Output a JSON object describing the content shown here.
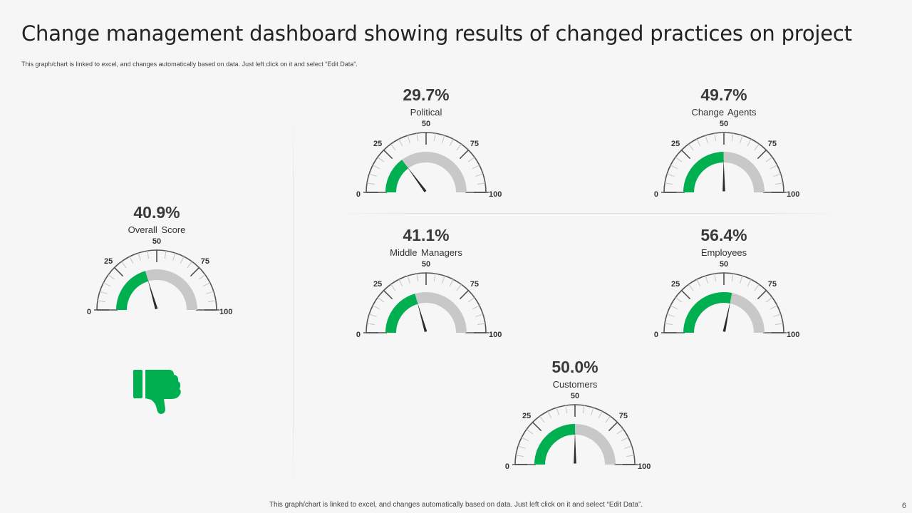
{
  "header": {
    "title": "Change management dashboard showing results of changed practices on project",
    "note_top": "This graph/chart is linked to excel, and changes automatically based on data. Just left click on it and select “Edit Data”.",
    "note_bottom": "This graph/chart is linked to excel, and changes automatically based on data. Just left click on it and select “Edit Data”.",
    "page_number": "6"
  },
  "colors": {
    "accent": "#00b050",
    "track": "#c8c8c8",
    "outline": "#555555",
    "needle": "#2b2b2b"
  },
  "icons": {
    "verdict": "thumbs-down-icon"
  },
  "chart_data": {
    "type": "gauge",
    "range": [
      0,
      100
    ],
    "ticks": [
      "0",
      "25",
      "50",
      "75",
      "100"
    ],
    "gauges": [
      {
        "id": "overall",
        "label": "Overall  Score",
        "value": 40.9,
        "display": "40.9%"
      },
      {
        "id": "political",
        "label": "Political",
        "value": 29.7,
        "display": "29.7%"
      },
      {
        "id": "change-agents",
        "label": "Change  Agents",
        "value": 49.7,
        "display": "49.7%"
      },
      {
        "id": "middle-managers",
        "label": "Middle Managers",
        "value": 41.1,
        "display": "41.1%"
      },
      {
        "id": "employees",
        "label": "Employees",
        "value": 56.4,
        "display": "56.4%"
      },
      {
        "id": "customers",
        "label": "Customers",
        "value": 50.0,
        "display": "50.0%"
      }
    ]
  }
}
